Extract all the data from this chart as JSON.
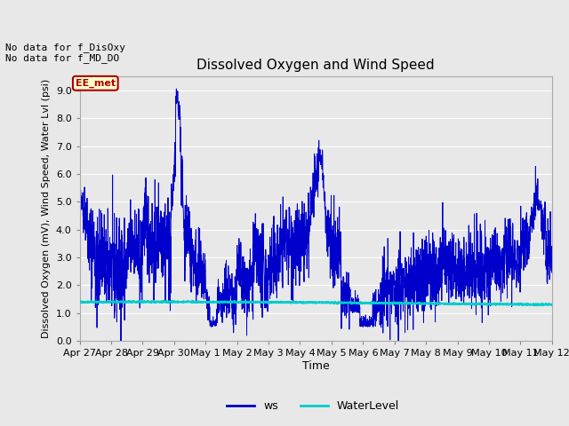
{
  "title": "Dissolved Oxygen and Wind Speed",
  "ylabel": "Dissolved Oxygen (mV), Wind Speed, Water Lvl (psi)",
  "xlabel": "Time",
  "ylim": [
    0.0,
    9.5
  ],
  "yticks": [
    0.0,
    1.0,
    2.0,
    3.0,
    4.0,
    5.0,
    6.0,
    7.0,
    8.0,
    9.0
  ],
  "xtick_labels": [
    "Apr 27",
    "Apr 28",
    "Apr 29",
    "Apr 30",
    "May 1",
    "May 2",
    "May 3",
    "May 4",
    "May 5",
    "May 6",
    "May 7",
    "May 8",
    "May 9",
    "May 10",
    "May 11",
    "May 12"
  ],
  "ws_color": "#0000cc",
  "wl_color": "#00cccc",
  "ws_linewidth": 0.7,
  "wl_linewidth": 1.3,
  "bg_color": "#e0e0e0",
  "plot_bg_color": "#e8e8e8",
  "grid_color": "#ffffff",
  "annotation_text": "No data for f_DisOxy\nNo data for f_MD_DO",
  "legend_label_ws": "ws",
  "legend_label_wl": "WaterLevel",
  "ee_met_label": "EE_met",
  "ee_met_bg": "#ffffcc",
  "ee_met_border": "#aa0000",
  "ee_met_text_color": "#aa0000",
  "title_fontsize": 11,
  "axis_fontsize": 8,
  "tick_fontsize": 8
}
